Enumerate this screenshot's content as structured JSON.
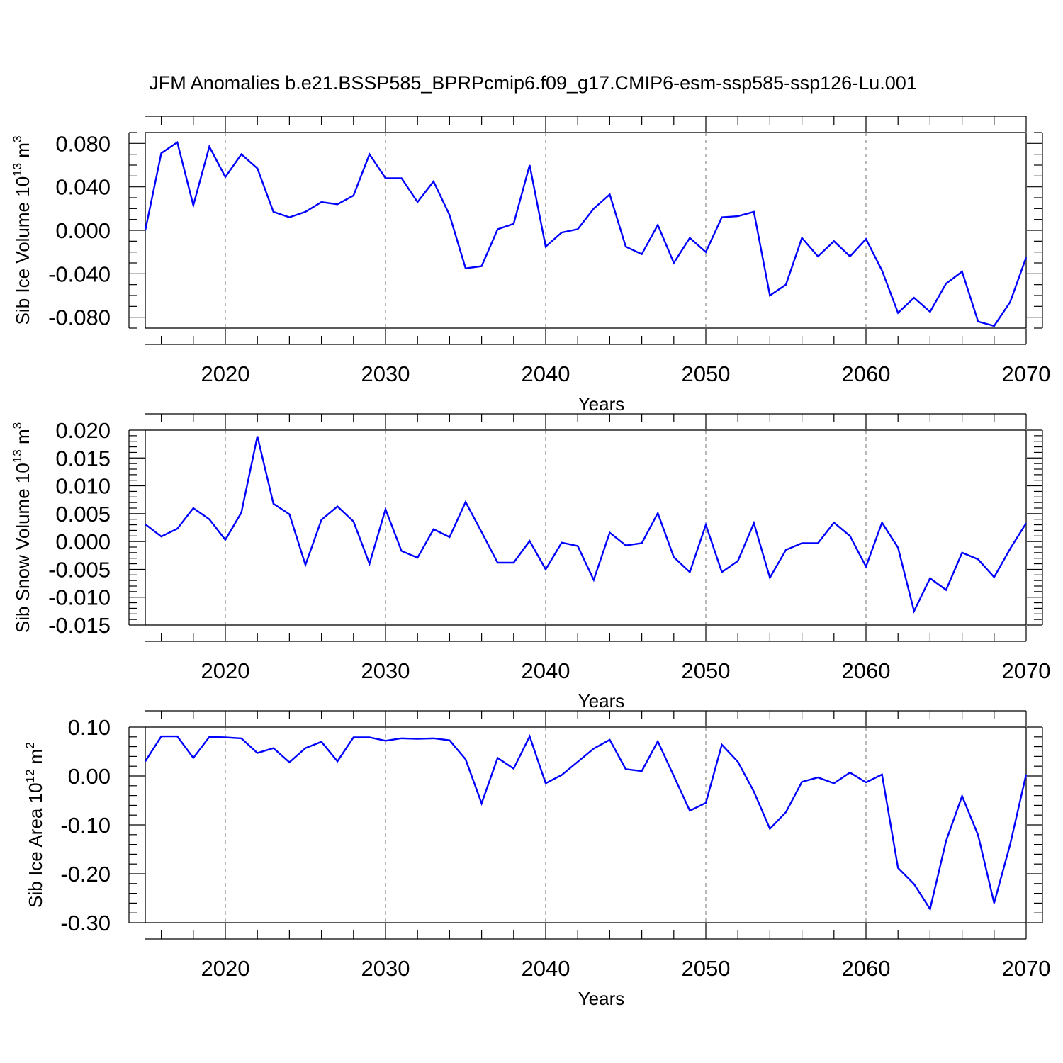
{
  "title": "JFM Anomalies b.e21.BSSP585_BPRPcmip6.f09_g17.CMIP6-esm-ssp585-ssp126-Lu.001",
  "colors": {
    "line": "#0000ff",
    "grid": "#8a8a8a",
    "frame": "#000000"
  },
  "chart_data": [
    {
      "type": "line",
      "ylabel_main": "Sib Ice Volume 10",
      "ylabel_exp": "13",
      "ylabel_unit": " m",
      "ylabel_unit_exp": "3",
      "xlabel": "Years",
      "xlim": [
        2015,
        2070
      ],
      "ylim": [
        -0.09,
        0.09
      ],
      "x_ticks": [
        2020,
        2030,
        2040,
        2050,
        2060,
        2070
      ],
      "x_tick_labels": [
        "2020",
        "2030",
        "2040",
        "2050",
        "2060",
        "2070"
      ],
      "y_ticks": [
        -0.08,
        -0.04,
        0.0,
        0.04,
        0.08
      ],
      "y_tick_labels": [
        "-0.080",
        "-0.040",
        "0.000",
        "0.040",
        "0.080"
      ],
      "y_minor_step": 0.01,
      "x": [
        2015,
        2016,
        2017,
        2018,
        2019,
        2020,
        2021,
        2022,
        2023,
        2024,
        2025,
        2026,
        2027,
        2028,
        2029,
        2030,
        2031,
        2032,
        2033,
        2034,
        2035,
        2036,
        2037,
        2038,
        2039,
        2040,
        2041,
        2042,
        2043,
        2044,
        2045,
        2046,
        2047,
        2048,
        2049,
        2050,
        2051,
        2052,
        2053,
        2054,
        2055,
        2056,
        2057,
        2058,
        2059,
        2060,
        2061,
        2062,
        2063,
        2064,
        2065,
        2066,
        2067,
        2068,
        2069,
        2070
      ],
      "series": [
        {
          "name": "Sib Ice Volume",
          "values": [
            0.0,
            0.071,
            0.081,
            0.023,
            0.077,
            0.049,
            0.07,
            0.057,
            0.017,
            0.012,
            0.017,
            0.026,
            0.024,
            0.032,
            0.07,
            0.048,
            0.048,
            0.026,
            0.045,
            0.014,
            -0.035,
            -0.033,
            0.001,
            0.006,
            0.06,
            -0.015,
            -0.002,
            0.001,
            0.02,
            0.033,
            -0.015,
            -0.022,
            0.005,
            -0.03,
            -0.007,
            -0.02,
            0.012,
            0.013,
            0.017,
            -0.06,
            -0.05,
            -0.007,
            -0.024,
            -0.01,
            -0.024,
            -0.008,
            -0.037,
            -0.076,
            -0.062,
            -0.075,
            -0.049,
            -0.038,
            -0.084,
            -0.088,
            -0.066,
            -0.025
          ]
        }
      ]
    },
    {
      "type": "line",
      "ylabel_main": "Sib Snow Volume 10",
      "ylabel_exp": "13",
      "ylabel_unit": " m",
      "ylabel_unit_exp": "3",
      "xlabel": "Years",
      "xlim": [
        2015,
        2070
      ],
      "ylim": [
        -0.015,
        0.02
      ],
      "x_ticks": [
        2020,
        2030,
        2040,
        2050,
        2060,
        2070
      ],
      "x_tick_labels": [
        "2020",
        "2030",
        "2040",
        "2050",
        "2060",
        "2070"
      ],
      "y_ticks": [
        -0.015,
        -0.01,
        -0.005,
        0.0,
        0.005,
        0.01,
        0.015,
        0.02
      ],
      "y_tick_labels": [
        "-0.015",
        "-0.010",
        "-0.005",
        "0.000",
        "0.005",
        "0.010",
        "0.015",
        "0.020"
      ],
      "y_minor_step": 0.001,
      "x": [
        2015,
        2016,
        2017,
        2018,
        2019,
        2020,
        2021,
        2022,
        2023,
        2024,
        2025,
        2026,
        2027,
        2028,
        2029,
        2030,
        2031,
        2032,
        2033,
        2034,
        2035,
        2036,
        2037,
        2038,
        2039,
        2040,
        2041,
        2042,
        2043,
        2044,
        2045,
        2046,
        2047,
        2048,
        2049,
        2050,
        2051,
        2052,
        2053,
        2054,
        2055,
        2056,
        2057,
        2058,
        2059,
        2060,
        2061,
        2062,
        2063,
        2064,
        2065,
        2066,
        2067,
        2068,
        2069,
        2070
      ],
      "series": [
        {
          "name": "Sib Snow Volume",
          "values": [
            0.0031,
            0.0009,
            0.0023,
            0.006,
            0.004,
            0.0003,
            0.0052,
            0.0189,
            0.0068,
            0.0049,
            -0.0042,
            0.0039,
            0.0063,
            0.0036,
            -0.004,
            0.0058,
            -0.0017,
            -0.0029,
            0.0022,
            0.0008,
            0.0071,
            0.0017,
            -0.0038,
            -0.0038,
            0.0001,
            -0.005,
            -0.0002,
            -0.0008,
            -0.0069,
            0.0016,
            -0.0007,
            -0.0003,
            0.0051,
            -0.0028,
            -0.0055,
            0.003,
            -0.0055,
            -0.0035,
            0.0033,
            -0.0065,
            -0.0015,
            -0.0003,
            -0.0003,
            0.0034,
            0.001,
            -0.0045,
            0.0034,
            -0.0011,
            -0.0125,
            -0.0066,
            -0.0087,
            -0.002,
            -0.0032,
            -0.0064,
            -0.0013,
            0.0033
          ]
        }
      ]
    },
    {
      "type": "line",
      "ylabel_main": "Sib Ice Area 10",
      "ylabel_exp": "12",
      "ylabel_unit": " m",
      "ylabel_unit_exp": "2",
      "xlabel": "Years",
      "xlim": [
        2015,
        2070
      ],
      "ylim": [
        -0.3,
        0.1
      ],
      "x_ticks": [
        2020,
        2030,
        2040,
        2050,
        2060,
        2070
      ],
      "x_tick_labels": [
        "2020",
        "2030",
        "2040",
        "2050",
        "2060",
        "2070"
      ],
      "y_ticks": [
        -0.3,
        -0.2,
        -0.1,
        0.0,
        0.1
      ],
      "y_tick_labels": [
        "-0.30",
        "-0.20",
        "-0.10",
        "0.00",
        "0.10"
      ],
      "y_minor_step": 0.02,
      "x": [
        2015,
        2016,
        2017,
        2018,
        2019,
        2020,
        2021,
        2022,
        2023,
        2024,
        2025,
        2026,
        2027,
        2028,
        2029,
        2030,
        2031,
        2032,
        2033,
        2034,
        2035,
        2036,
        2037,
        2038,
        2039,
        2040,
        2041,
        2042,
        2043,
        2044,
        2045,
        2046,
        2047,
        2048,
        2049,
        2050,
        2051,
        2052,
        2053,
        2054,
        2055,
        2056,
        2057,
        2058,
        2059,
        2060,
        2061,
        2062,
        2063,
        2064,
        2065,
        2066,
        2067,
        2068,
        2069,
        2070
      ],
      "series": [
        {
          "name": "Sib Ice Area",
          "values": [
            0.03,
            0.081,
            0.081,
            0.037,
            0.08,
            0.079,
            0.077,
            0.047,
            0.057,
            0.028,
            0.057,
            0.07,
            0.03,
            0.079,
            0.079,
            0.072,
            0.077,
            0.076,
            0.077,
            0.073,
            0.034,
            -0.056,
            0.037,
            0.015,
            0.081,
            -0.015,
            0.002,
            0.029,
            0.056,
            0.074,
            0.014,
            0.01,
            0.071,
            0.0,
            -0.071,
            -0.055,
            0.064,
            0.029,
            -0.032,
            -0.108,
            -0.074,
            -0.012,
            -0.003,
            -0.015,
            0.007,
            -0.013,
            0.003,
            -0.188,
            -0.221,
            -0.272,
            -0.133,
            -0.041,
            -0.121,
            -0.26,
            -0.14,
            0.003
          ]
        }
      ]
    }
  ]
}
